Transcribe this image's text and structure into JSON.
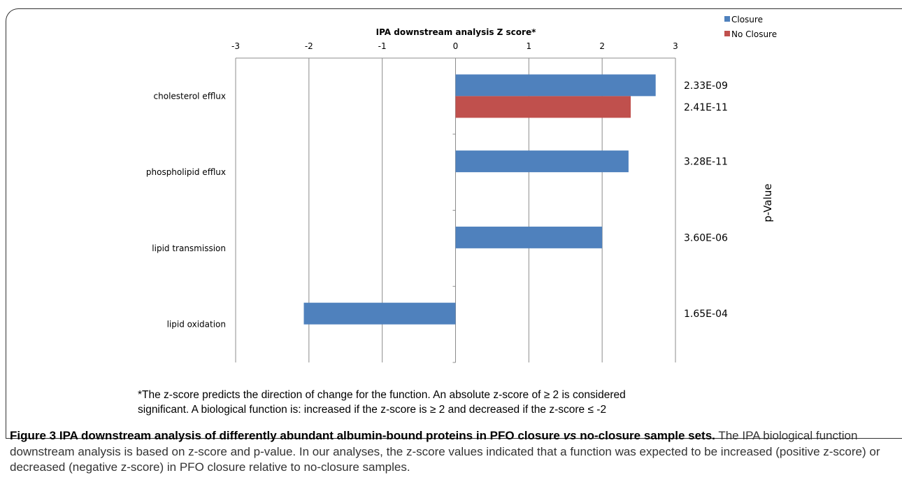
{
  "chart_data": {
    "type": "bar",
    "orientation": "horizontal",
    "title": "IPA downstream analysis Z score*",
    "categories": [
      "cholesterol efflux",
      "phospholipid efflux",
      "lipid transmission",
      "lipid oxidation"
    ],
    "xlim": [
      -3,
      3
    ],
    "x_ticks": [
      -3,
      -2,
      -1,
      0,
      1,
      2,
      3
    ],
    "grid": "vertical",
    "legend_position": "top-right",
    "series": [
      {
        "name": "Closure",
        "color": "#4f81bd",
        "values": [
          2.73,
          2.36,
          2.0,
          -2.07
        ]
      },
      {
        "name": "No Closure",
        "color": "#c0504d",
        "values": [
          2.39,
          null,
          null,
          null
        ]
      }
    ],
    "p_values": [
      {
        "category": "cholesterol efflux",
        "series": "Closure",
        "label": "2.33E-09"
      },
      {
        "category": "cholesterol efflux",
        "series": "No Closure",
        "label": "2.41E-11"
      },
      {
        "category": "phospholipid efflux",
        "series": "Closure",
        "label": "3.28E-11"
      },
      {
        "category": "lipid transmission",
        "series": "Closure",
        "label": "3.60E-06"
      },
      {
        "category": "lipid oxidation",
        "series": "Closure",
        "label": "1.65E-04"
      }
    ],
    "right_axis_label": "p-Value"
  },
  "footnote": {
    "line1": "*The z-score predicts the direction of change for the function. An absolute z-score of ≥ 2 is considered",
    "line2": "significant. A biological function is: increased if the z-score is ≥ 2 and decreased if the z-score ≤ -2"
  },
  "caption": {
    "bold_prefix": "Figure 3 IPA downstream analysis of differently abundant albumin-bound proteins in PFO closure",
    "bold_italic": "vs",
    "bold_suffix": "no-closure sample sets.",
    "text": "The IPA biological function downstream analysis is based on z-score and p-value. In our analyses, the z-score values indicated that a function was expected to be increased (positive z-score) or decreased (negative z-score) in PFO closure relative to no-closure samples."
  }
}
